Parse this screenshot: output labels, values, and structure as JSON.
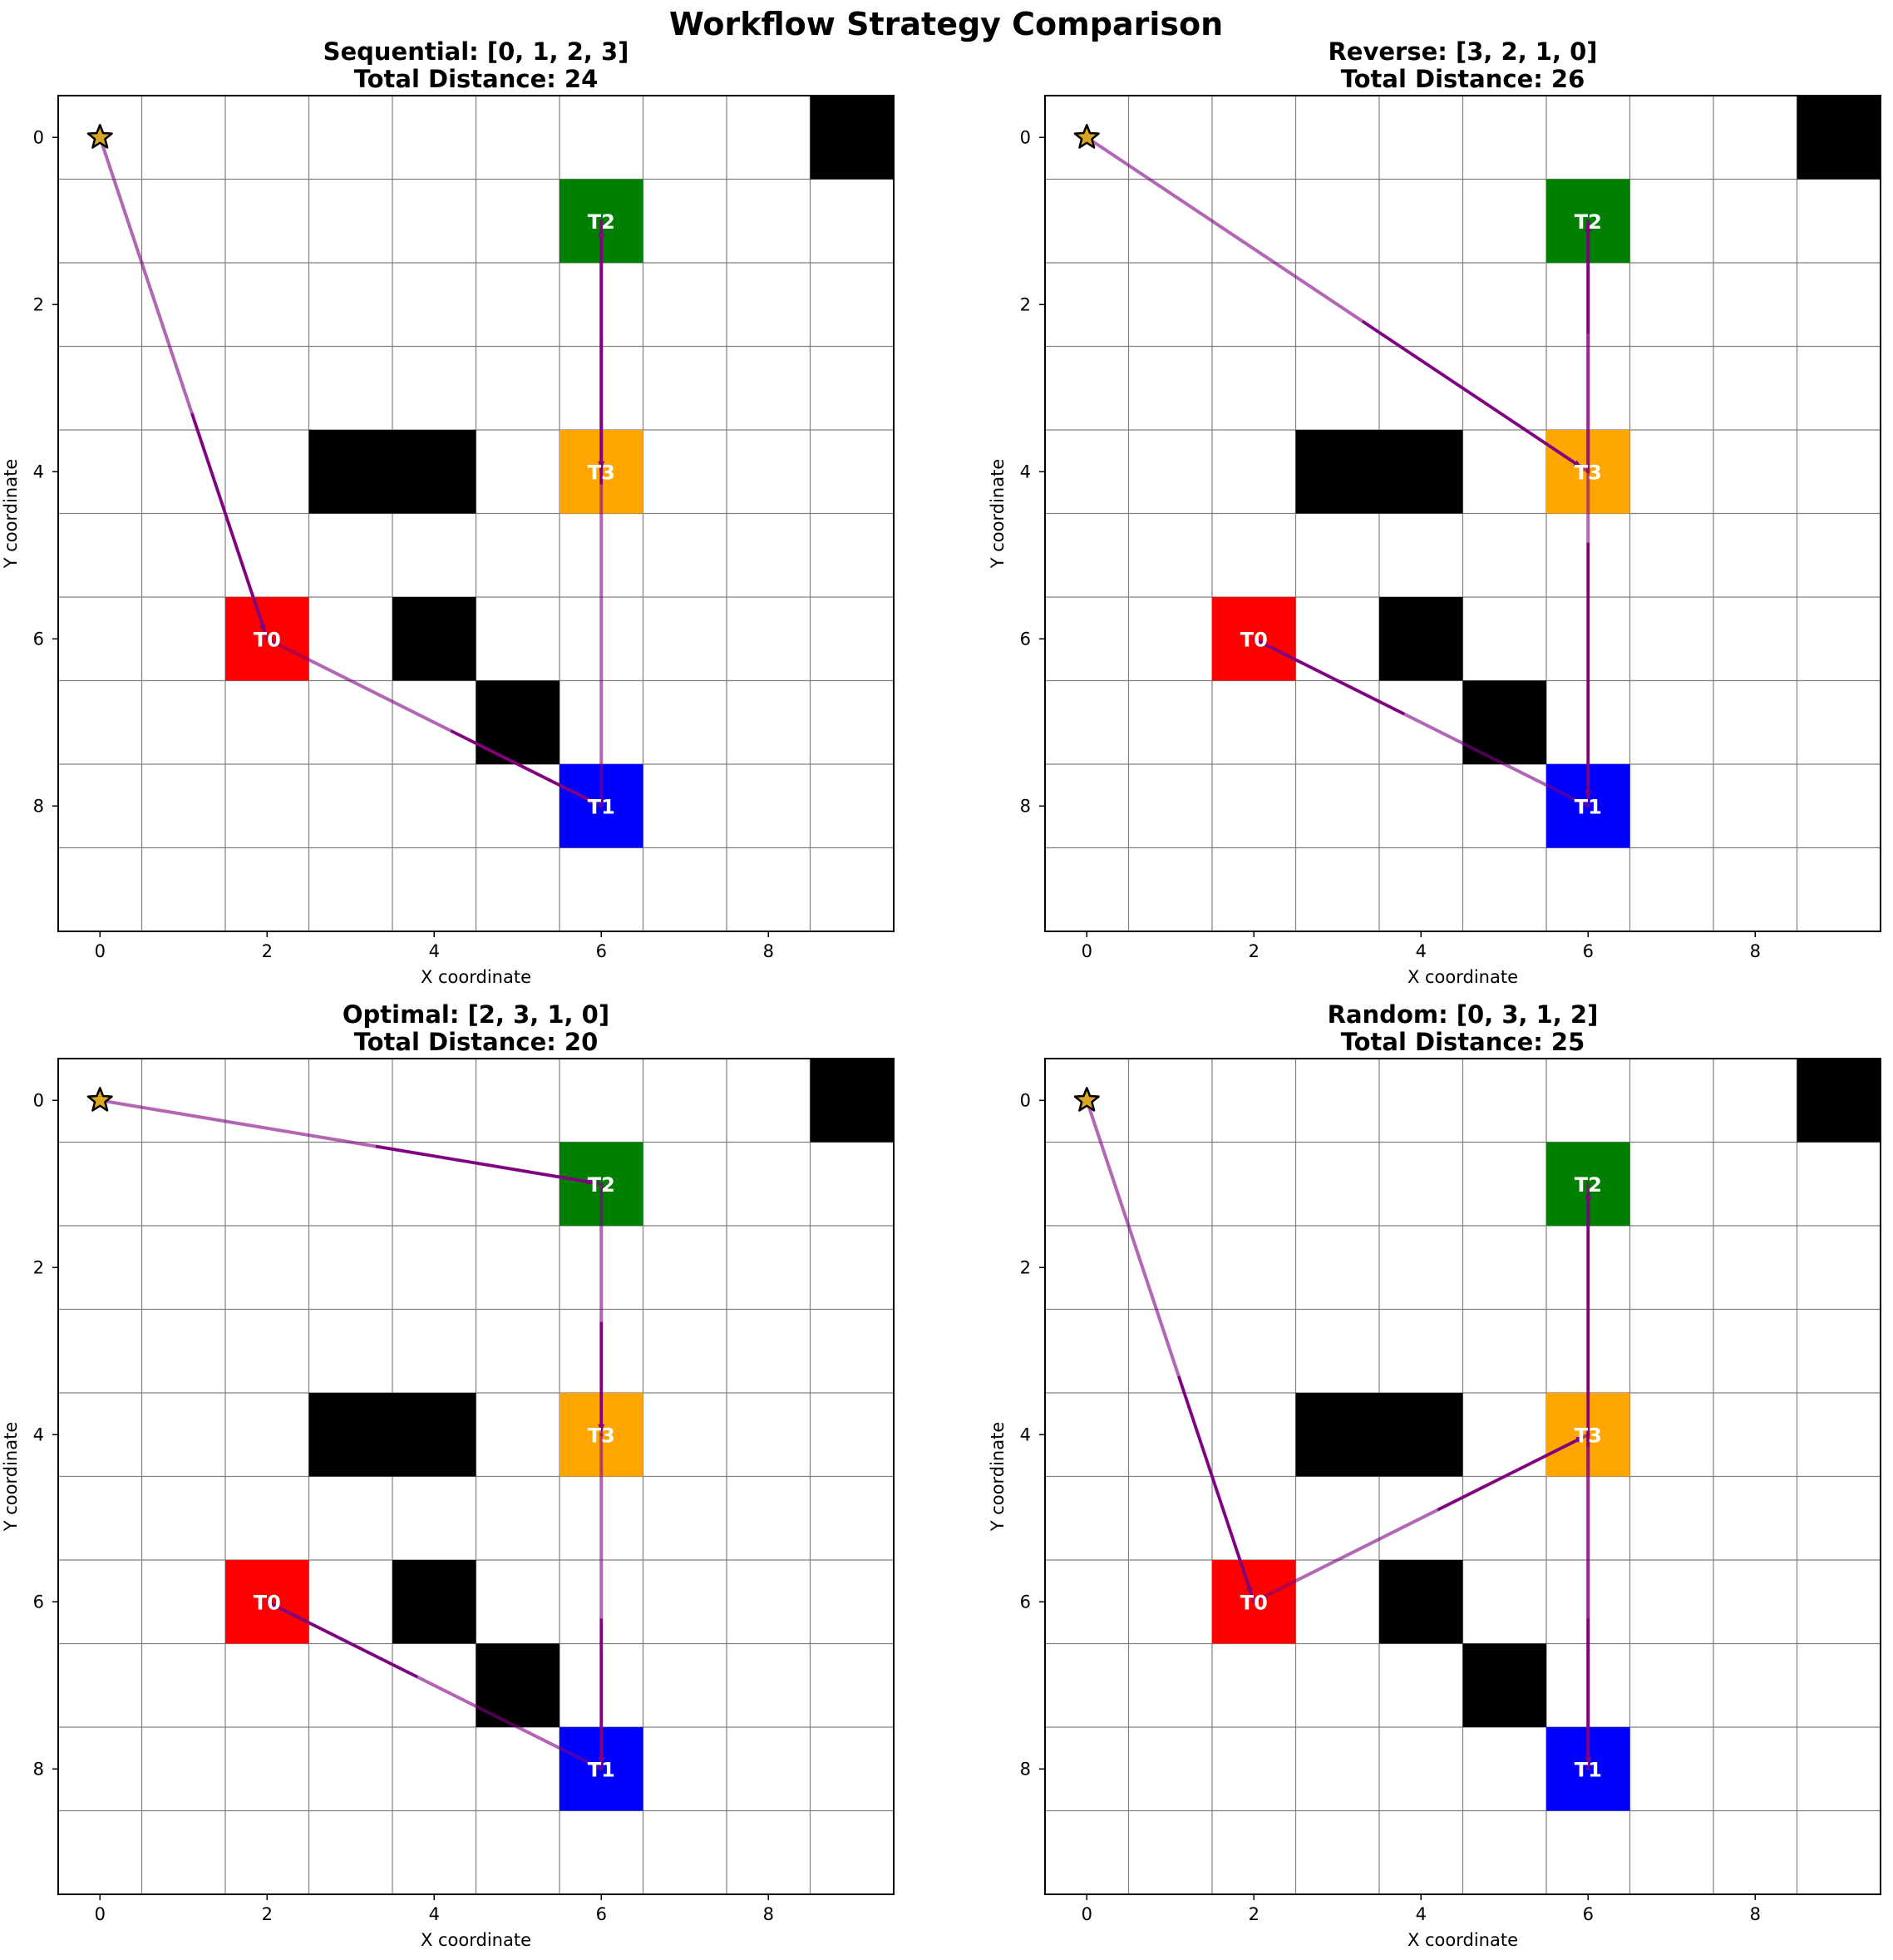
{
  "figure_title": "Workflow Strategy Comparison",
  "colors": {
    "T0": "#ff0000",
    "T1": "#0000ff",
    "T2": "#008000",
    "T3": "#ffa500",
    "obstacle": "#000000",
    "path": "#800080",
    "start": "#daa520",
    "grid": "#808080"
  },
  "start_icon": "star-icon",
  "chart_data": [
    {
      "type": "grid-path",
      "title_line1": "Sequential: [0, 1, 2, 3]",
      "title_line2": "Total Distance: 24",
      "xlabel": "X coordinate",
      "ylabel": "Y coordinate",
      "xlim": [
        -0.5,
        9.5
      ],
      "ylim": [
        9.5,
        -0.5
      ],
      "xticks": [
        0,
        2,
        4,
        6,
        8
      ],
      "yticks": [
        0,
        2,
        4,
        6,
        8
      ],
      "grid_size": 10,
      "start": [
        0,
        0
      ],
      "obstacles": [
        [
          9,
          0
        ],
        [
          3,
          4
        ],
        [
          4,
          4
        ],
        [
          4,
          6
        ],
        [
          5,
          7
        ]
      ],
      "tasks": [
        {
          "label": "T0",
          "x": 2,
          "y": 6
        },
        {
          "label": "T1",
          "x": 6,
          "y": 8
        },
        {
          "label": "T2",
          "x": 6,
          "y": 1
        },
        {
          "label": "T3",
          "x": 6,
          "y": 4
        }
      ],
      "path": [
        [
          0,
          0
        ],
        [
          2,
          6
        ],
        [
          6,
          8
        ],
        [
          6,
          1
        ],
        [
          6,
          4
        ]
      ]
    },
    {
      "type": "grid-path",
      "title_line1": "Reverse: [3, 2, 1, 0]",
      "title_line2": "Total Distance: 26",
      "xlabel": "X coordinate",
      "ylabel": "Y coordinate",
      "xlim": [
        -0.5,
        9.5
      ],
      "ylim": [
        9.5,
        -0.5
      ],
      "xticks": [
        0,
        2,
        4,
        6,
        8
      ],
      "yticks": [
        0,
        2,
        4,
        6,
        8
      ],
      "grid_size": 10,
      "start": [
        0,
        0
      ],
      "obstacles": [
        [
          9,
          0
        ],
        [
          3,
          4
        ],
        [
          4,
          4
        ],
        [
          4,
          6
        ],
        [
          5,
          7
        ]
      ],
      "tasks": [
        {
          "label": "T0",
          "x": 2,
          "y": 6
        },
        {
          "label": "T1",
          "x": 6,
          "y": 8
        },
        {
          "label": "T2",
          "x": 6,
          "y": 1
        },
        {
          "label": "T3",
          "x": 6,
          "y": 4
        }
      ],
      "path": [
        [
          0,
          0
        ],
        [
          6,
          4
        ],
        [
          6,
          1
        ],
        [
          6,
          8
        ],
        [
          2,
          6
        ]
      ]
    },
    {
      "type": "grid-path",
      "title_line1": "Optimal: [2, 3, 1, 0]",
      "title_line2": "Total Distance: 20",
      "xlabel": "X coordinate",
      "ylabel": "Y coordinate",
      "xlim": [
        -0.5,
        9.5
      ],
      "ylim": [
        9.5,
        -0.5
      ],
      "xticks": [
        0,
        2,
        4,
        6,
        8
      ],
      "yticks": [
        0,
        2,
        4,
        6,
        8
      ],
      "grid_size": 10,
      "start": [
        0,
        0
      ],
      "obstacles": [
        [
          9,
          0
        ],
        [
          3,
          4
        ],
        [
          4,
          4
        ],
        [
          4,
          6
        ],
        [
          5,
          7
        ]
      ],
      "tasks": [
        {
          "label": "T0",
          "x": 2,
          "y": 6
        },
        {
          "label": "T1",
          "x": 6,
          "y": 8
        },
        {
          "label": "T2",
          "x": 6,
          "y": 1
        },
        {
          "label": "T3",
          "x": 6,
          "y": 4
        }
      ],
      "path": [
        [
          0,
          0
        ],
        [
          6,
          1
        ],
        [
          6,
          4
        ],
        [
          6,
          8
        ],
        [
          2,
          6
        ]
      ]
    },
    {
      "type": "grid-path",
      "title_line1": "Random: [0, 3, 1, 2]",
      "title_line2": "Total Distance: 25",
      "xlabel": "X coordinate",
      "ylabel": "Y coordinate",
      "xlim": [
        -0.5,
        9.5
      ],
      "ylim": [
        9.5,
        -0.5
      ],
      "xticks": [
        0,
        2,
        4,
        6,
        8
      ],
      "yticks": [
        0,
        2,
        4,
        6,
        8
      ],
      "grid_size": 10,
      "start": [
        0,
        0
      ],
      "obstacles": [
        [
          9,
          0
        ],
        [
          3,
          4
        ],
        [
          4,
          4
        ],
        [
          4,
          6
        ],
        [
          5,
          7
        ]
      ],
      "tasks": [
        {
          "label": "T0",
          "x": 2,
          "y": 6
        },
        {
          "label": "T1",
          "x": 6,
          "y": 8
        },
        {
          "label": "T2",
          "x": 6,
          "y": 1
        },
        {
          "label": "T3",
          "x": 6,
          "y": 4
        }
      ],
      "path": [
        [
          0,
          0
        ],
        [
          2,
          6
        ],
        [
          6,
          4
        ],
        [
          6,
          8
        ],
        [
          6,
          1
        ]
      ]
    }
  ]
}
